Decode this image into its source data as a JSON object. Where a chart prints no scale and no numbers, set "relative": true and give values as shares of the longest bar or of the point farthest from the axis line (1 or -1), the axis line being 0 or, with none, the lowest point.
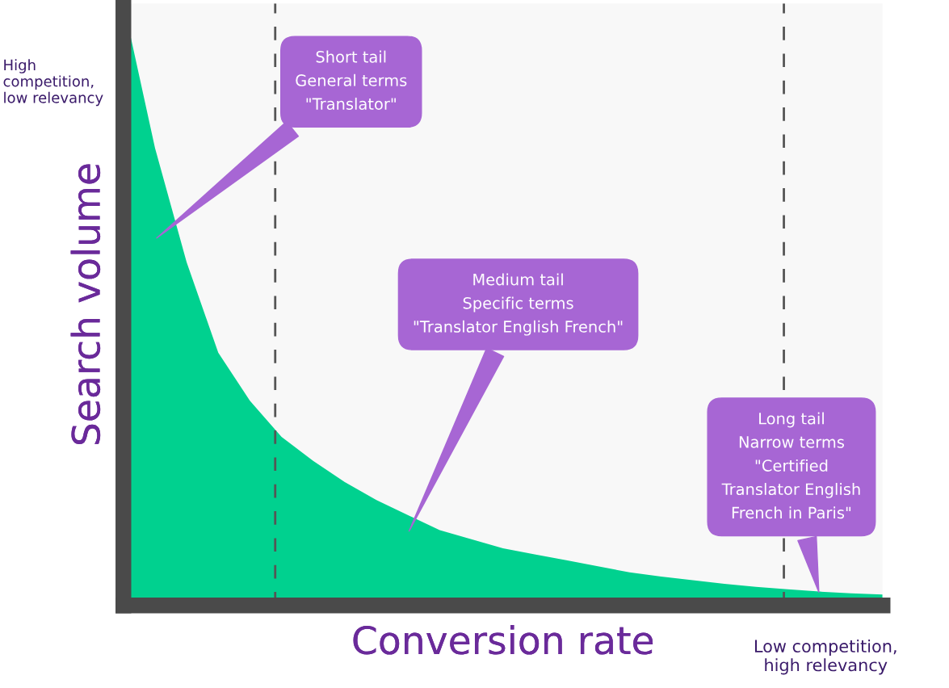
{
  "chart_data": {
    "type": "area",
    "relative": true,
    "xlabel": "Conversion rate",
    "ylabel": "Search volume",
    "categories": [
      null,
      null,
      null,
      null,
      null,
      null,
      null,
      null,
      null,
      null,
      null,
      null,
      null,
      null,
      null,
      null,
      null,
      null,
      null,
      null,
      null,
      null,
      null,
      null,
      null
    ],
    "series": [
      {
        "color": "#00d18f",
        "values": [
          1.0,
          0.76,
          0.57,
          0.42,
          0.34,
          0.28,
          0.24,
          0.205,
          0.175,
          0.15,
          0.125,
          0.11,
          0.095,
          0.085,
          0.075,
          0.065,
          0.055,
          0.048,
          0.042,
          0.036,
          0.031,
          0.027,
          0.023,
          0.02,
          0.018
        ]
      }
    ],
    "annotations": [
      "Short tail\nGeneral terms\n\"Translator\"",
      "Medium tail\nSpecific terms\n\"Translator English French\"",
      "Long tail\nNarrow terms\n\"Certified\nTranslator English\nFrench in Paris\"",
      "High\ncompetition,\nlow relevancy",
      "Low competition,\nhigh relevancy"
    ],
    "grid": false,
    "legend": false
  }
}
